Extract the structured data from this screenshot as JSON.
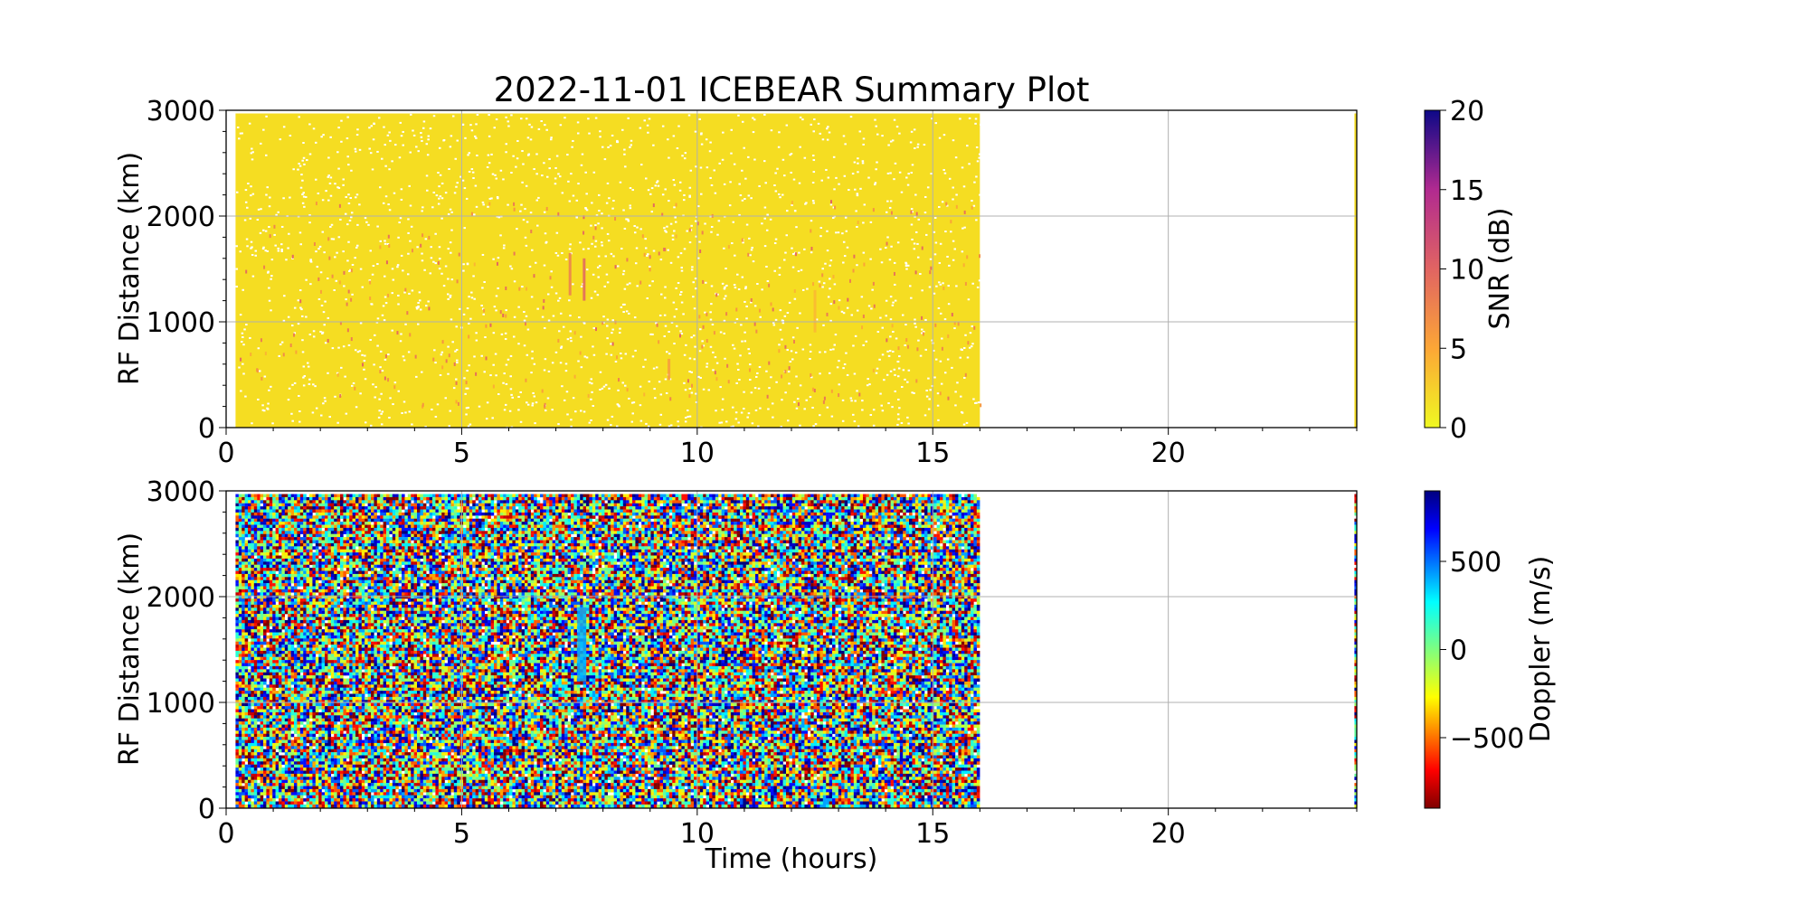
{
  "figure": {
    "title": "2022-11-01 ICEBEAR Summary Plot"
  },
  "chart_data": [
    {
      "type": "scatter",
      "title": "2022-11-01 ICEBEAR Summary Plot",
      "xlabel": "",
      "ylabel": "RF Distance (km)",
      "xlim": [
        0,
        24
      ],
      "ylim": [
        0,
        3000
      ],
      "x_ticks": [
        "0",
        "5",
        "10",
        "15",
        "20"
      ],
      "y_ticks": [
        "0",
        "1000",
        "2000",
        "3000"
      ],
      "grid": true,
      "data_extent_hours": [
        [
          0.2,
          16.0
        ],
        [
          23.95,
          24.0
        ]
      ],
      "background_color": "#f5dd22",
      "colorbar": {
        "label": "SNR (dB)",
        "range": [
          0,
          20
        ],
        "ticks": [
          "0",
          "5",
          "10",
          "15",
          "20"
        ],
        "colormap": "plasma_r"
      },
      "features": [
        {
          "time_hours": 7.3,
          "distance_km": [
            1250,
            1650
          ],
          "snr_db": 8
        },
        {
          "time_hours": 7.6,
          "distance_km": [
            1200,
            1600
          ],
          "snr_db": 10
        },
        {
          "time_hours": 9.4,
          "distance_km": [
            450,
            650
          ],
          "snr_db": 6
        },
        {
          "time_hours": 12.5,
          "distance_km": [
            900,
            1300
          ],
          "snr_db": 4
        }
      ]
    },
    {
      "type": "scatter",
      "title": "",
      "xlabel": "Time (hours)",
      "ylabel": "RF Distance (km)",
      "xlim": [
        0,
        24
      ],
      "ylim": [
        0,
        3000
      ],
      "x_ticks": [
        "0",
        "5",
        "10",
        "15",
        "20"
      ],
      "y_ticks": [
        "0",
        "1000",
        "2000",
        "3000"
      ],
      "grid": true,
      "data_extent_hours": [
        [
          0.2,
          16.0
        ],
        [
          23.95,
          24.0
        ]
      ],
      "colorbar": {
        "label": "Doppler (m/s)",
        "range": [
          -900,
          900
        ],
        "ticks": [
          "−500",
          "0",
          "500"
        ],
        "colormap": "jet_r"
      },
      "features": [
        {
          "time_hours": 7.55,
          "distance_km": [
            1200,
            1900
          ],
          "doppler_ms": 400
        }
      ]
    }
  ]
}
